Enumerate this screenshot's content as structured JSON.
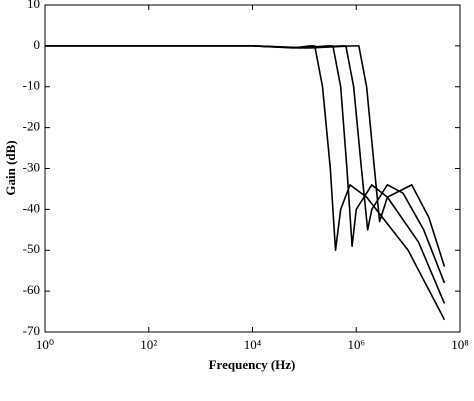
{
  "chart_data": {
    "type": "line",
    "xlabel": "Frequency (Hz)",
    "ylabel": "Gain (dB)",
    "xscale": "log",
    "xlim": [
      1,
      100000000
    ],
    "ylim": [
      -70,
      10
    ],
    "xticks": [
      {
        "value": 1,
        "label": "10⁰"
      },
      {
        "value": 100,
        "label": "10²"
      },
      {
        "value": 10000,
        "label": "10⁴"
      },
      {
        "value": 1000000,
        "label": "10⁶"
      },
      {
        "value": 100000000,
        "label": "10⁸"
      }
    ],
    "yticks": [
      10,
      0,
      -10,
      -20,
      -30,
      -40,
      -50,
      -60,
      -70
    ],
    "grid": false,
    "series": [
      {
        "color": "#000000",
        "x": [
          1,
          10000,
          63096,
          125893,
          158489,
          223872,
          316228,
          398107,
          501187,
          758578,
          1584893,
          10000000,
          50118723
        ],
        "values": [
          0,
          0,
          -0.5,
          0,
          0,
          -10,
          -30,
          -50,
          -40,
          -34,
          -37,
          -50,
          -67
        ]
      },
      {
        "color": "#000000",
        "x": [
          1,
          10000,
          79433,
          281838,
          354813,
          501187,
          660693,
          831764,
          1000000,
          1995262,
          3981072,
          15848932,
          50118723
        ],
        "values": [
          0,
          0,
          -0.5,
          0,
          0,
          -10,
          -30,
          -49,
          -40,
          -34,
          -37,
          -48,
          -63
        ]
      },
      {
        "color": "#000000",
        "x": [
          1,
          10000,
          100000,
          501187,
          630957,
          891251,
          1258925,
          1659587,
          1995262,
          3981072,
          7943282,
          19952623,
          50118723
        ],
        "values": [
          0,
          0,
          -0.5,
          0,
          0,
          -10,
          -30,
          -45,
          -40,
          -34,
          -36,
          -45,
          -58
        ]
      },
      {
        "color": "#000000",
        "x": [
          1,
          10000,
          125893,
          891251,
          1122018,
          1584893,
          2238721,
          2818383,
          3981072,
          11748976,
          25118864,
          50118723
        ],
        "values": [
          0,
          0,
          -0.5,
          0,
          0,
          -10,
          -30,
          -43,
          -37,
          -34,
          -42,
          -54
        ]
      }
    ]
  }
}
